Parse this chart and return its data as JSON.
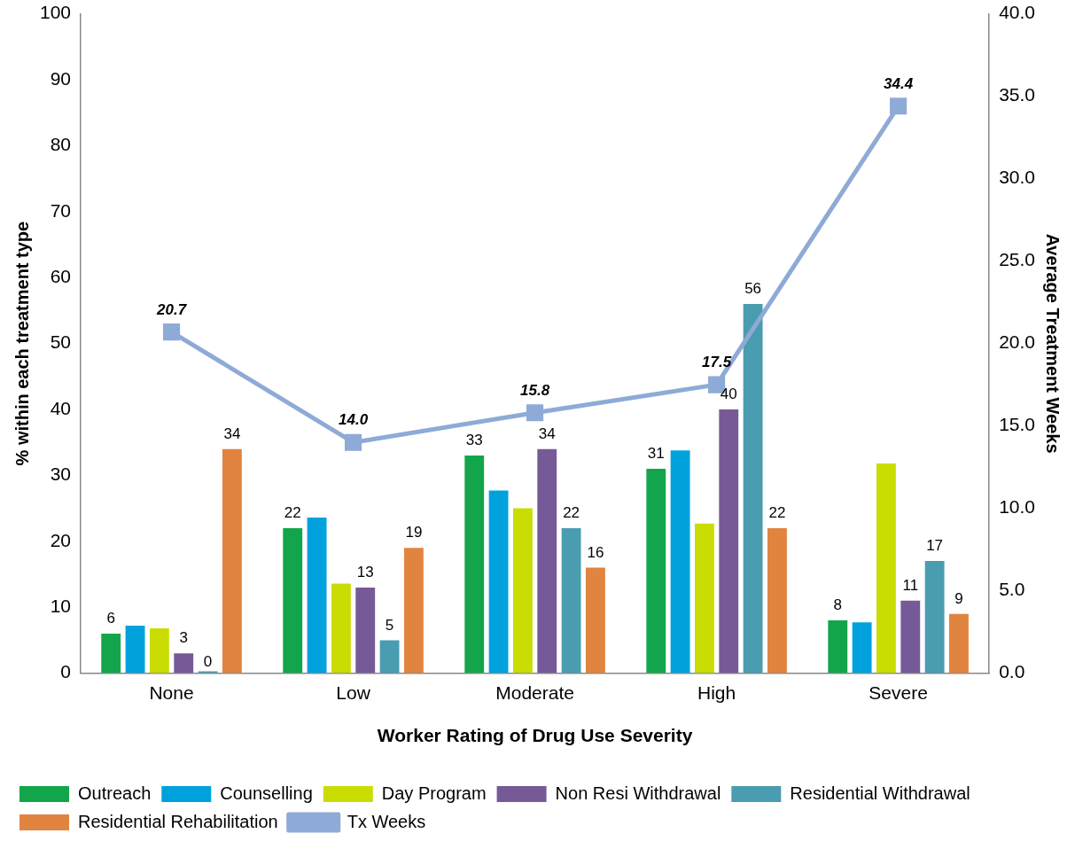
{
  "chart_data": {
    "type": "bar",
    "categories": [
      "None",
      "Low",
      "Moderate",
      "High",
      "Severe"
    ],
    "xlabel": "Worker Rating of Drug Use Severity",
    "ylabel": "% within each treatment type",
    "y2label": "Average Treatment Weeks",
    "ylim": [
      0,
      100
    ],
    "yticks": [
      0,
      10,
      20,
      30,
      40,
      50,
      60,
      70,
      80,
      90,
      100
    ],
    "y2lim": [
      0,
      40
    ],
    "y2ticks": [
      {
        "value": 0,
        "label": "0.0"
      },
      {
        "value": 5,
        "label": "5.0"
      },
      {
        "value": 10,
        "label": "10.0"
      },
      {
        "value": 15,
        "label": "15.0"
      },
      {
        "value": 20,
        "label": "20.0"
      },
      {
        "value": 25,
        "label": "25.0"
      },
      {
        "value": 30,
        "label": "30.0"
      },
      {
        "value": 35,
        "label": "35.0"
      },
      {
        "value": 40,
        "label": "40.0"
      }
    ],
    "grid": false,
    "legend": "bottom",
    "series": [
      {
        "name": "Outreach",
        "color": "#13a54b",
        "values": [
          6,
          22,
          33,
          31,
          8
        ],
        "value_labels": [
          "6",
          "22",
          "33",
          "31",
          "8"
        ]
      },
      {
        "name": "Counselling",
        "color": "#00a2de",
        "values": [
          7.2,
          23.6,
          27.7,
          33.8,
          7.7
        ]
      },
      {
        "name": "Day Program",
        "color": "#c9dd03",
        "values": [
          6.8,
          13.6,
          25,
          22.7,
          31.8
        ]
      },
      {
        "name": "Non Resi Withdrawal",
        "color": "#765a98",
        "values": [
          3,
          13,
          34,
          40,
          11
        ],
        "value_labels": [
          "3",
          "13",
          "34",
          "40",
          "11"
        ]
      },
      {
        "name": "Residential Withdrawal",
        "color": "#4a9cb1",
        "values": [
          0,
          5,
          22,
          56,
          17
        ],
        "value_labels": [
          "0",
          "5",
          "22",
          "56",
          "17"
        ]
      },
      {
        "name": "Residential Rehabilitation",
        "color": "#e0843f",
        "values": [
          34,
          19,
          16,
          22,
          9
        ],
        "value_labels": [
          "34",
          "19",
          "16",
          "22",
          "9"
        ]
      },
      {
        "name": "Tx Weeks",
        "type": "line",
        "axis": "y2",
        "color": "#8eaad6",
        "marker": "square",
        "values": [
          20.7,
          14.0,
          15.8,
          17.5,
          34.4
        ],
        "value_labels": [
          "20.7",
          "14.0",
          "15.8",
          "17.5",
          "34.4"
        ]
      }
    ]
  }
}
